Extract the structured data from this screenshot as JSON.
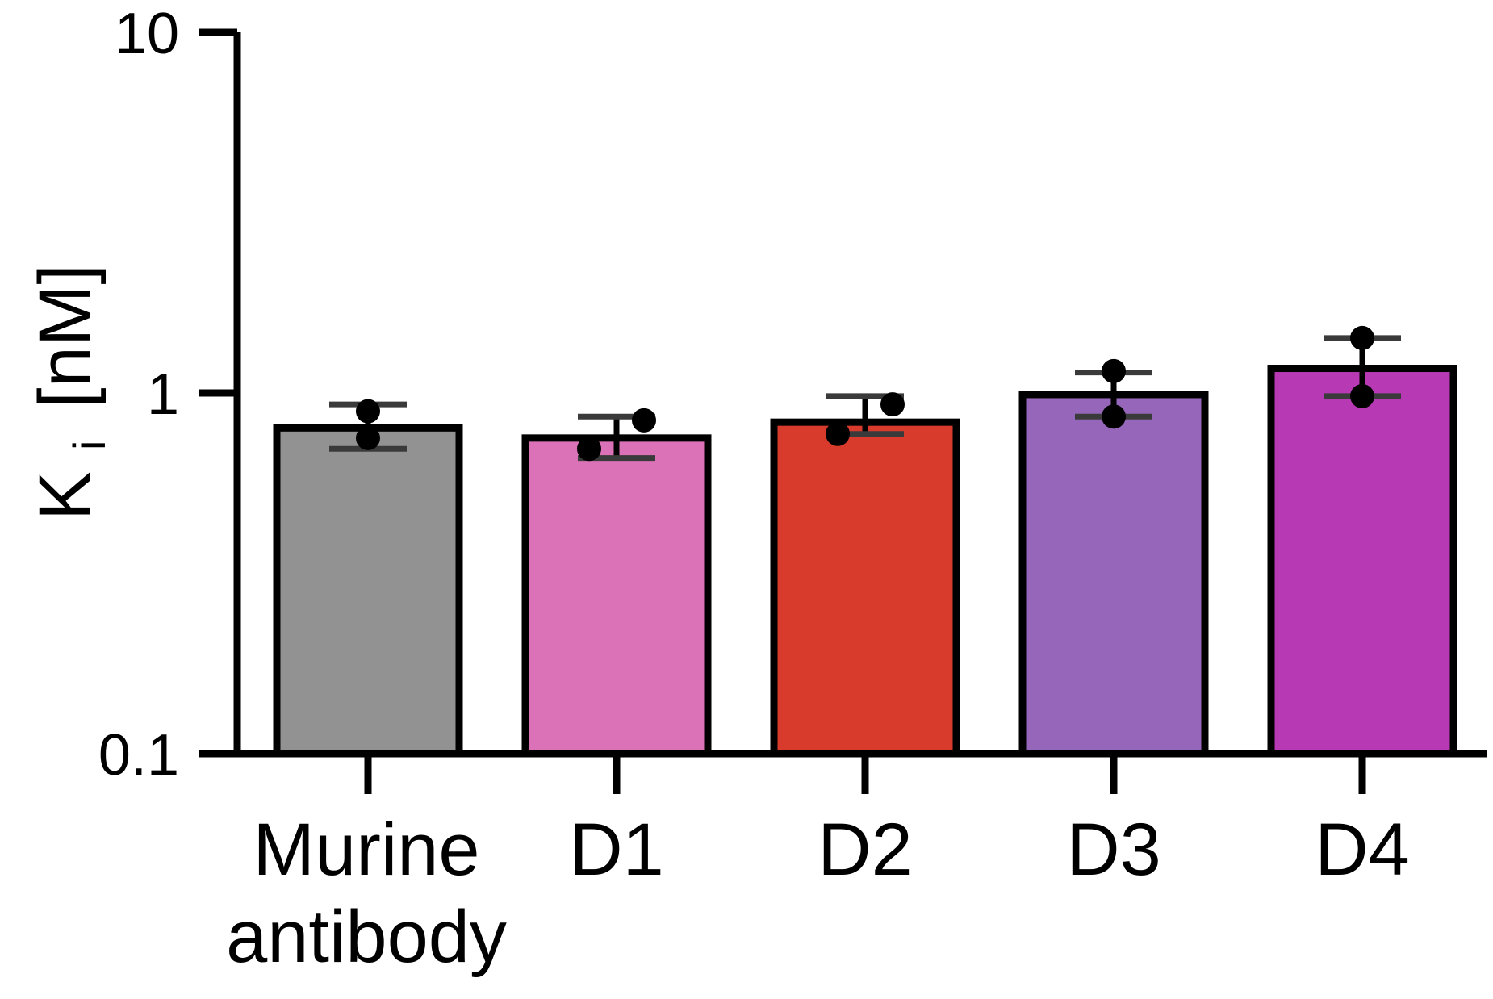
{
  "chart_data": {
    "type": "bar",
    "title": "",
    "ylabel": {
      "main": "K",
      "subscript": "i",
      "unit": "[nM]"
    },
    "xlabel": "",
    "yscale": "log",
    "ylim": [
      0.1,
      10
    ],
    "yticks": [
      {
        "value": 0.1,
        "label": "0.1"
      },
      {
        "value": 1,
        "label": "1"
      },
      {
        "value": 10,
        "label": "10"
      }
    ],
    "grid": false,
    "categories": [
      {
        "lines": [
          "Murine",
          "antibody"
        ]
      },
      {
        "lines": [
          "D1"
        ]
      },
      {
        "lines": [
          "D2"
        ]
      },
      {
        "lines": [
          "D3"
        ]
      },
      {
        "lines": [
          "D4"
        ]
      }
    ],
    "values": [
      0.8,
      0.75,
      0.83,
      0.99,
      1.17
    ],
    "error_low": [
      0.7,
      0.66,
      0.77,
      0.86,
      0.98
    ],
    "error_high": [
      0.93,
      0.86,
      0.98,
      1.14,
      1.42
    ],
    "points": [
      [
        0.89,
        0.75
      ],
      [
        0.7,
        0.84
      ],
      [
        0.77,
        0.93
      ],
      [
        1.15,
        0.86
      ],
      [
        1.42,
        0.98
      ]
    ],
    "colors": [
      "#929292",
      "#db72b8",
      "#d83a2c",
      "#9566ba",
      "#b73ab4"
    ]
  }
}
